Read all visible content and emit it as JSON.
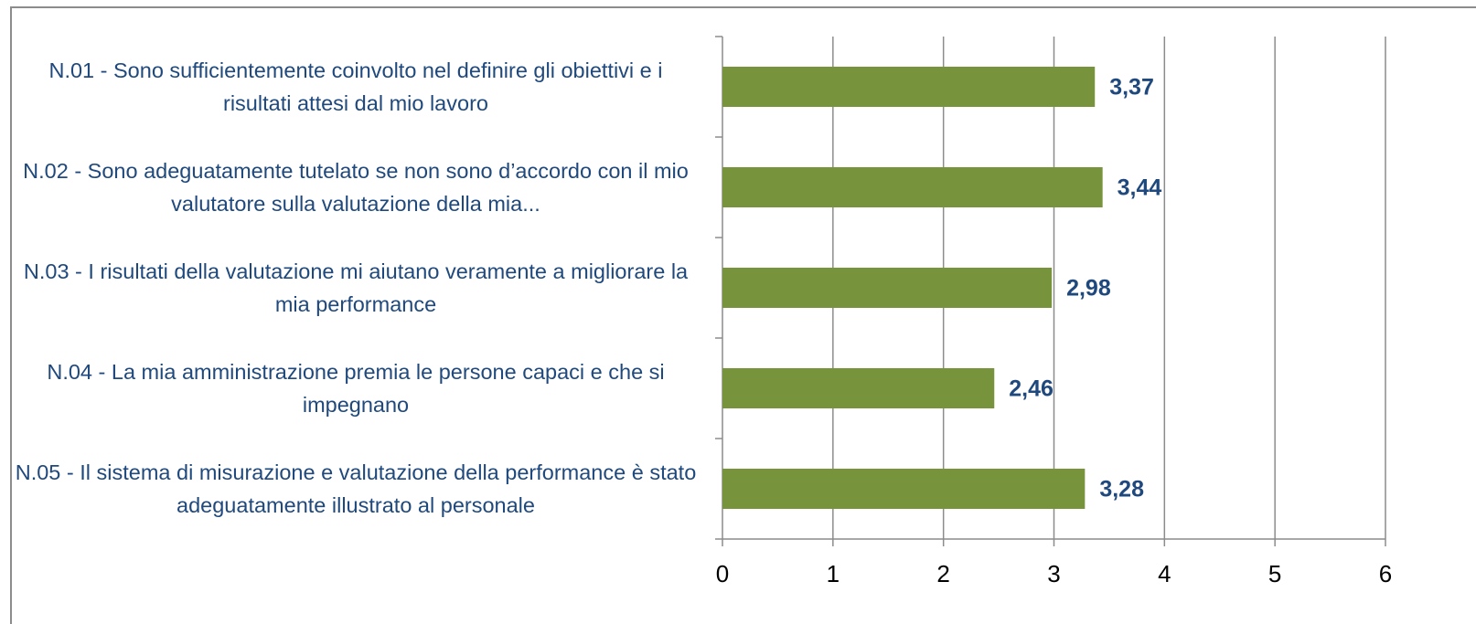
{
  "chart_data": {
    "type": "bar",
    "orientation": "horizontal",
    "categories": [
      "N.01 - Sono sufficientemente coinvolto nel definire gli obiettivi e i risultati attesi dal mio lavoro",
      "N.02 - Sono adeguatamente tutelato se non sono d’accordo con il mio valutatore sulla valutazione della mia...",
      "N.03 - I risultati della valutazione mi aiutano veramente a migliorare la mia performance",
      "N.04 - La mia amministrazione premia le persone capaci e che si impegnano",
      "N.05 - Il sistema di misurazione e valutazione della performance è stato adeguatamente illustrato al personale"
    ],
    "values": [
      3.37,
      3.44,
      2.98,
      2.46,
      3.28
    ],
    "value_labels": [
      "3,37",
      "3,44",
      "2,98",
      "2,46",
      "3,28"
    ],
    "color": "#77933c",
    "xlim": [
      0,
      6
    ],
    "xticks": [
      0,
      1,
      2,
      3,
      4,
      5,
      6
    ],
    "grid": true
  }
}
